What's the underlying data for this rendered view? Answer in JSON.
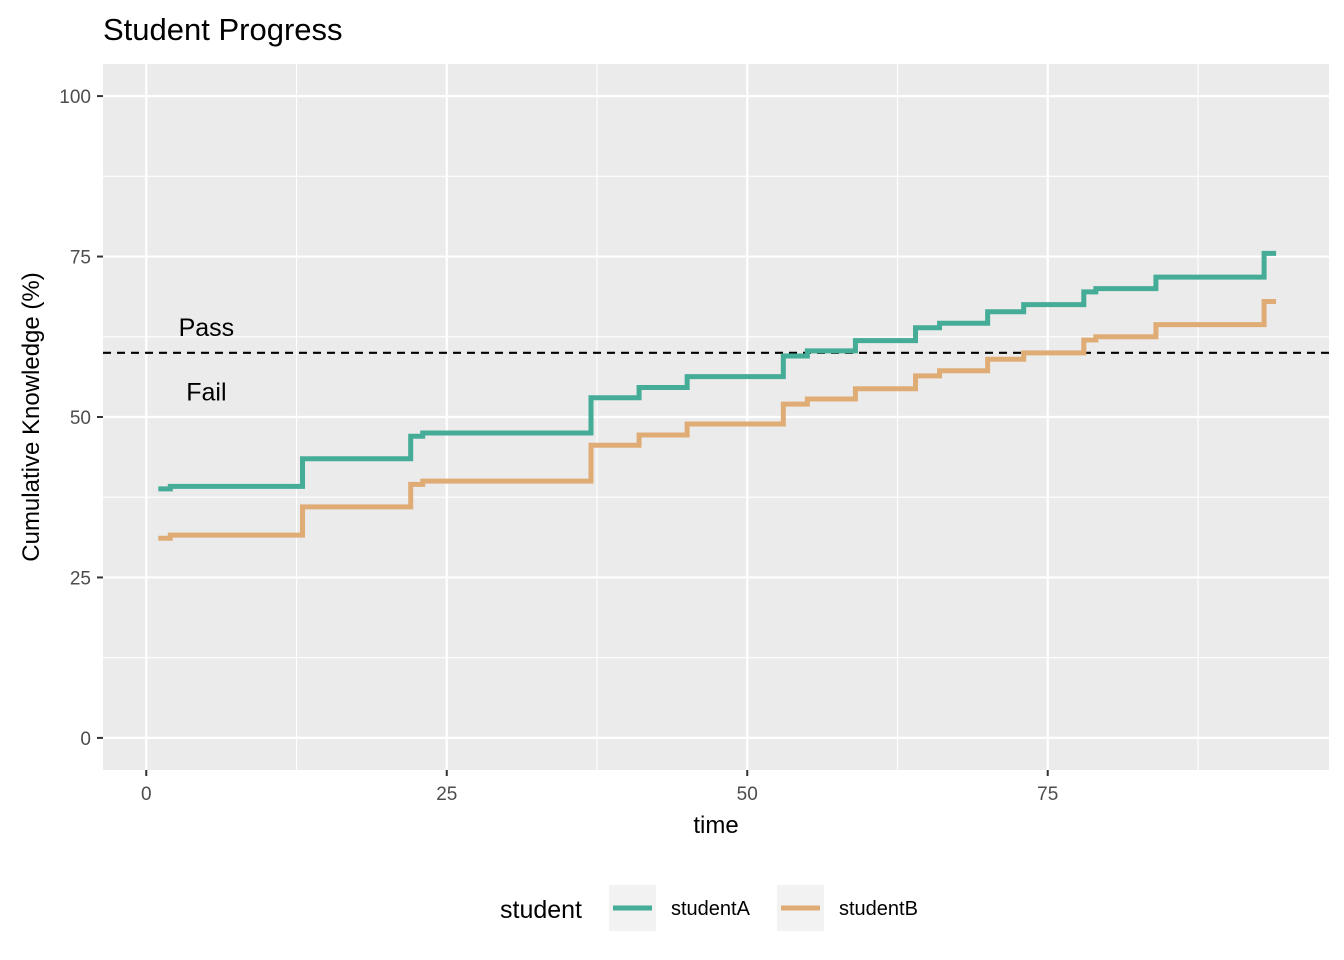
{
  "chart_data": {
    "type": "line",
    "step": true,
    "title": "Student Progress",
    "xlabel": "time",
    "ylabel": "Cumulative Knowledge (%)",
    "xlim": [
      -3.6,
      98.4
    ],
    "ylim": [
      -5,
      105
    ],
    "x_ticks": [
      0,
      25,
      50,
      75
    ],
    "y_ticks": [
      0,
      25,
      50,
      75,
      100
    ],
    "grid": true,
    "legend": {
      "title": "student",
      "position": "bottom"
    },
    "threshold": {
      "y": 60,
      "style": "dashed",
      "labels": {
        "above": "Pass",
        "below": "Fail"
      }
    },
    "annotations": [
      {
        "text": "Pass",
        "x": 5,
        "y": 64
      },
      {
        "text": "Fail",
        "x": 5,
        "y": 54
      }
    ],
    "series": [
      {
        "name": "studentA",
        "color": "#45AC97",
        "x": [
          1,
          2,
          13,
          22,
          23,
          37,
          41,
          45,
          53,
          55,
          59,
          64,
          66,
          70,
          73,
          78,
          79,
          84,
          93,
          94
        ],
        "y": [
          38.8,
          39.2,
          43.5,
          47.0,
          47.5,
          53.0,
          54.6,
          56.3,
          59.5,
          60.3,
          61.9,
          63.9,
          64.6,
          66.4,
          67.5,
          69.5,
          70.0,
          71.8,
          75.5,
          75.5
        ]
      },
      {
        "name": "studentB",
        "color": "#E0AC76",
        "x": [
          1,
          2,
          13,
          22,
          23,
          37,
          41,
          45,
          53,
          55,
          59,
          64,
          66,
          70,
          73,
          78,
          79,
          84,
          93,
          94
        ],
        "y": [
          31.1,
          31.6,
          36.0,
          39.5,
          40.0,
          45.6,
          47.2,
          48.9,
          52.0,
          52.8,
          54.4,
          56.4,
          57.2,
          59.0,
          60.0,
          62.0,
          62.5,
          64.4,
          68.0,
          68.0
        ]
      }
    ]
  }
}
